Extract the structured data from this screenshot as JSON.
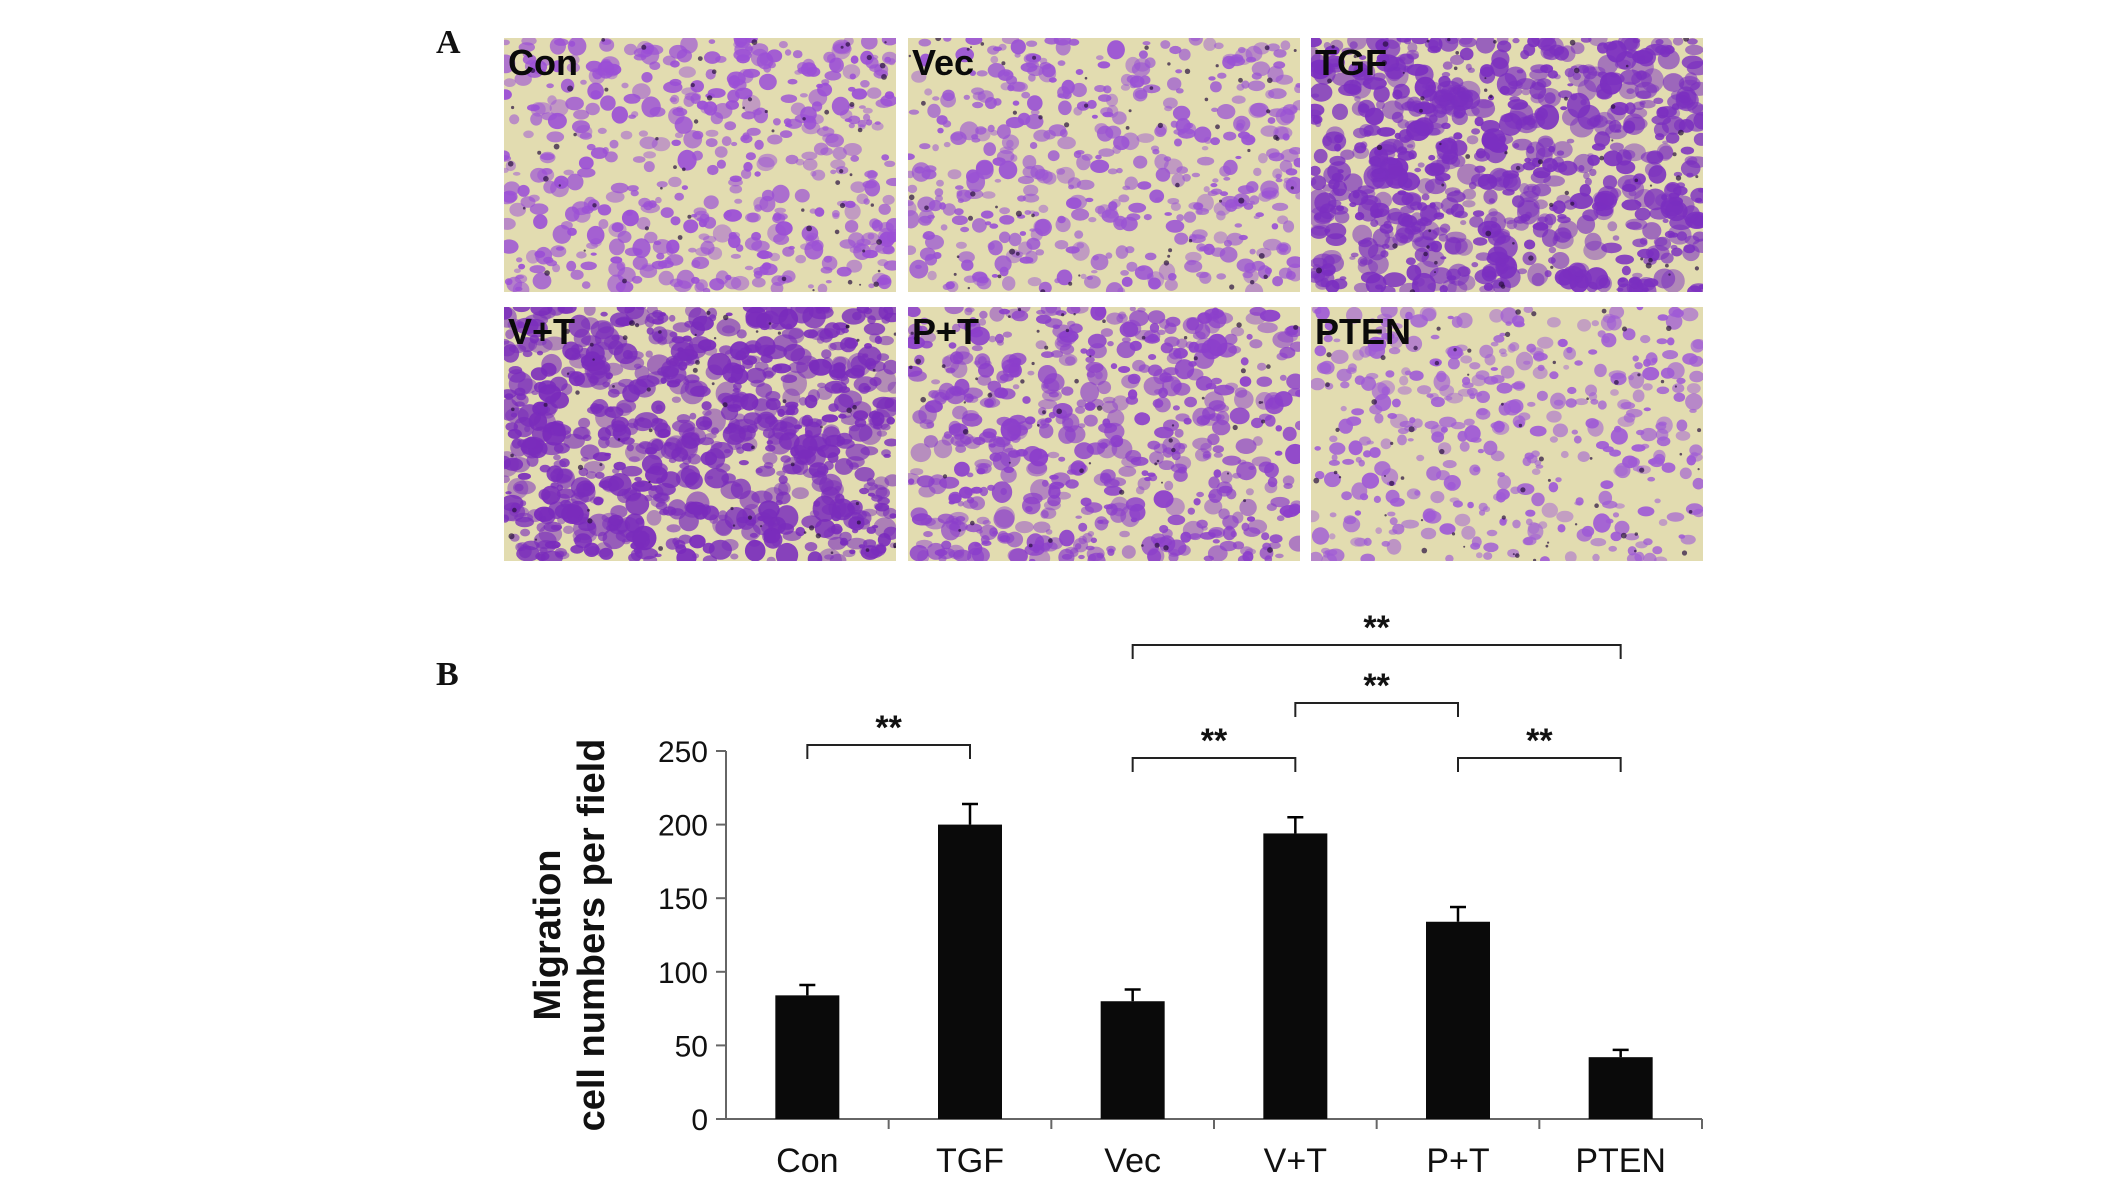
{
  "panel_a": {
    "letter": "A",
    "images": [
      {
        "label": "Con",
        "density": 0.45,
        "stain": "#9b4fd6"
      },
      {
        "label": "Vec",
        "density": 0.42,
        "stain": "#9a52d4"
      },
      {
        "label": "TGF",
        "density": 0.85,
        "stain": "#7b2fc0"
      },
      {
        "label": "V+T",
        "density": 0.9,
        "stain": "#7a2cbc"
      },
      {
        "label": "P+T",
        "density": 0.6,
        "stain": "#8c3fcb"
      },
      {
        "label": "PTEN",
        "density": 0.32,
        "stain": "#9f5ad6"
      }
    ],
    "background": "#e2dcb0"
  },
  "panel_b": {
    "letter": "B"
  },
  "chart_data": {
    "type": "bar",
    "categories": [
      "Con",
      "TGF",
      "Vec",
      "V+T",
      "P+T",
      "PTEN"
    ],
    "values": [
      84,
      200,
      80,
      194,
      134,
      42
    ],
    "errors": [
      7,
      14,
      8,
      11,
      10,
      5
    ],
    "ylabel_line1": "Migration",
    "ylabel_line2": "cell numbers per field",
    "ylim": [
      0,
      250
    ],
    "yticks": [
      0,
      50,
      100,
      150,
      200,
      250
    ],
    "bar_color": "#0a0a0a",
    "significance": [
      {
        "from": "Con",
        "to": "TGF",
        "label": "**"
      },
      {
        "from": "Vec",
        "to": "V+T",
        "label": "**"
      },
      {
        "from": "P+T",
        "to": "PTEN",
        "label": "**"
      },
      {
        "from": "V+T",
        "to": "P+T",
        "label": "**"
      },
      {
        "from": "Vec",
        "to": "PTEN",
        "label": "**"
      }
    ]
  }
}
